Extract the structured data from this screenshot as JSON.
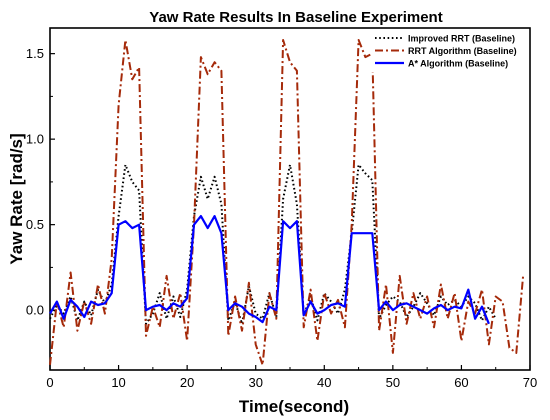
{
  "chart_data": {
    "type": "line",
    "title": "Yaw Rate Results In Baseline Experiment",
    "xlabel": "Time(second)",
    "ylabel": "Yaw Rate [rad/s]",
    "xlim": [
      0,
      70
    ],
    "ylim": [
      -0.35,
      1.65
    ],
    "x_ticks": [
      0,
      10,
      20,
      30,
      40,
      50,
      60,
      70
    ],
    "y_ticks": [
      0.0,
      0.5,
      1.0,
      1.5
    ],
    "x_tick_labels": [
      "0",
      "10",
      "20",
      "30",
      "40",
      "50",
      "60",
      "70"
    ],
    "y_tick_labels": [
      "0.0",
      "0.5",
      "1.0",
      "1.5"
    ],
    "grid": false,
    "legend_position": "top-right",
    "series": [
      {
        "name": "Improved RRT (Baseline)",
        "color": "#000000",
        "style": "dotted",
        "x": [
          0,
          1,
          2,
          3,
          4,
          5,
          6,
          7,
          8,
          9,
          10,
          11,
          12,
          13,
          14,
          15,
          16,
          17,
          18,
          19,
          20,
          21,
          22,
          23,
          24,
          25,
          26,
          27,
          28,
          29,
          30,
          31,
          32,
          33,
          34,
          35,
          36,
          37,
          38,
          39,
          40,
          41,
          42,
          43,
          44,
          45,
          46,
          47,
          48,
          49,
          50,
          51,
          52,
          53,
          54,
          55,
          56,
          57,
          58,
          59,
          60,
          61,
          62,
          63,
          64,
          65
        ],
        "y": [
          -0.05,
          0.03,
          -0.02,
          0.08,
          -0.06,
          0.05,
          -0.03,
          0.12,
          0.04,
          0.15,
          0.55,
          0.85,
          0.75,
          0.7,
          -0.08,
          -0.02,
          0.1,
          -0.05,
          0.08,
          -0.04,
          0.12,
          0.55,
          0.78,
          0.65,
          0.78,
          0.62,
          -0.06,
          0.05,
          -0.08,
          0.14,
          -0.02,
          -0.05,
          0.1,
          -0.04,
          0.65,
          0.85,
          0.62,
          -0.03,
          0.08,
          -0.06,
          0.1,
          0.05,
          -0.02,
          0.12,
          0.45,
          0.85,
          0.8,
          0.76,
          -0.05,
          0.03,
          0.08,
          0.05,
          -0.04,
          0.02,
          0.1,
          0.04,
          -0.03,
          0.08,
          0.03,
          0.06,
          0.02,
          0.08,
          0.04,
          -0.06,
          0.02,
          -0.05
        ]
      },
      {
        "name": "RRT Algorithm (Baseline)",
        "color": "#a52a0a",
        "style": "dashdot",
        "x": [
          0,
          1,
          2,
          3,
          4,
          5,
          6,
          7,
          8,
          9,
          10,
          11,
          12,
          13,
          14,
          15,
          16,
          17,
          18,
          19,
          20,
          21,
          22,
          23,
          24,
          25,
          26,
          27,
          28,
          29,
          30,
          31,
          32,
          33,
          34,
          35,
          36,
          37,
          38,
          39,
          40,
          41,
          42,
          43,
          44,
          45,
          46,
          47,
          48,
          49,
          50,
          51,
          52,
          53,
          54,
          55,
          56,
          57,
          58,
          59,
          60,
          61,
          62,
          63,
          64,
          65,
          66,
          67,
          68,
          69
        ],
        "y": [
          -0.32,
          0.05,
          -0.1,
          0.22,
          -0.12,
          0.05,
          -0.08,
          0.15,
          -0.02,
          0.3,
          1.2,
          1.58,
          1.35,
          1.42,
          -0.15,
          0.02,
          -0.1,
          0.2,
          -0.05,
          0.1,
          -0.18,
          0.5,
          1.48,
          1.38,
          1.45,
          1.4,
          -0.15,
          0.08,
          -0.12,
          0.16,
          -0.2,
          -0.32,
          0.1,
          -0.05,
          1.58,
          1.45,
          1.4,
          -0.1,
          0.12,
          -0.18,
          0.1,
          -0.02,
          0.06,
          -0.1,
          0.5,
          1.58,
          1.48,
          1.5,
          -0.12,
          0.15,
          -0.25,
          0.2,
          -0.08,
          0.1,
          -0.05,
          0.08,
          -0.1,
          0.15,
          -0.05,
          0.1,
          -0.18,
          0.05,
          -0.02,
          0.12,
          -0.2,
          0.08,
          0.05,
          -0.22,
          -0.25,
          0.2
        ]
      },
      {
        "name": "A* Algorithm (Baseline)",
        "color": "#0000ff",
        "style": "solid",
        "x": [
          0,
          1,
          2,
          3,
          4,
          5,
          6,
          7,
          8,
          9,
          10,
          11,
          12,
          13,
          14,
          15,
          16,
          17,
          18,
          19,
          20,
          21,
          22,
          23,
          24,
          25,
          26,
          27,
          28,
          29,
          30,
          31,
          32,
          33,
          34,
          35,
          36,
          37,
          38,
          39,
          40,
          41,
          42,
          43,
          44,
          45,
          46,
          47,
          48,
          49,
          50,
          51,
          52,
          53,
          54,
          55,
          56,
          57,
          58,
          59,
          60,
          61,
          62,
          63,
          64
        ],
        "y": [
          -0.02,
          0.05,
          -0.05,
          0.06,
          0.02,
          -0.04,
          0.05,
          0.03,
          0.04,
          0.1,
          0.5,
          0.52,
          0.48,
          0.5,
          0.0,
          0.02,
          0.03,
          0.0,
          0.04,
          0.02,
          0.07,
          0.5,
          0.55,
          0.48,
          0.55,
          0.45,
          0.0,
          0.04,
          0.02,
          -0.02,
          -0.04,
          -0.07,
          0.02,
          0.0,
          0.52,
          0.48,
          0.52,
          -0.03,
          0.05,
          -0.02,
          0.0,
          0.03,
          0.04,
          0.02,
          0.45,
          0.45,
          0.45,
          0.45,
          0.0,
          0.05,
          0.0,
          0.03,
          0.04,
          0.02,
          0.0,
          -0.02,
          0.01,
          0.03,
          0.0,
          0.02,
          0.01,
          0.12,
          -0.05,
          0.02,
          -0.08
        ]
      }
    ]
  }
}
